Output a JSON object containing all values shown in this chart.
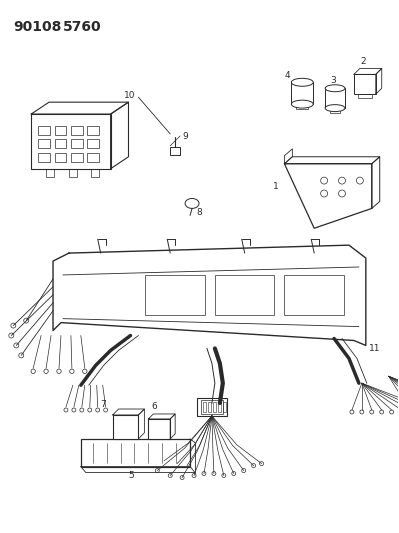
{
  "title_part1": "90108",
  "title_part2": "5760",
  "bg_color": "#ffffff",
  "line_color": "#2a2a2a",
  "title_fontsize": 10,
  "fig_width": 3.99,
  "fig_height": 5.33,
  "dpi": 100
}
